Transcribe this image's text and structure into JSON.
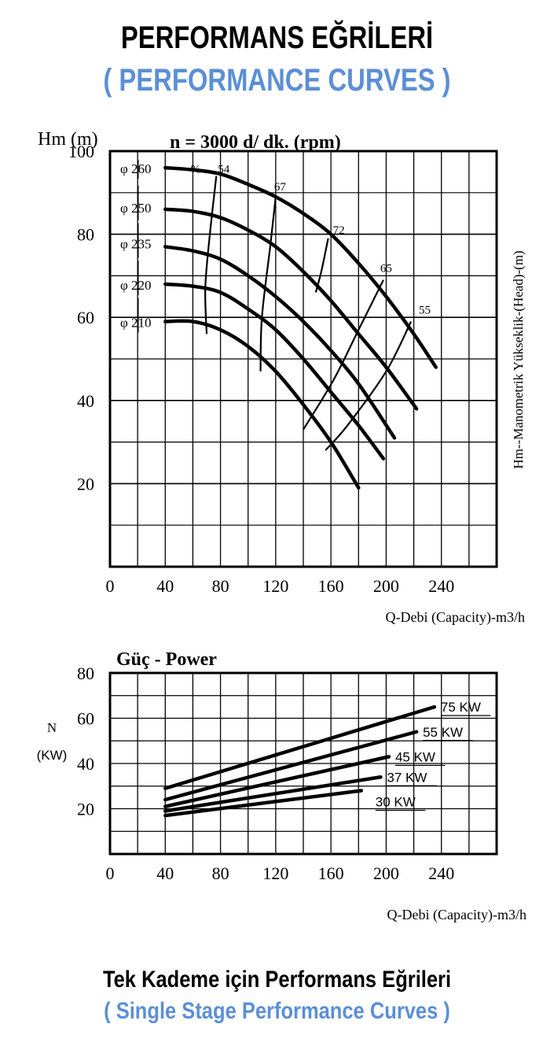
{
  "header": {
    "title": "PERFORMANS EĞRİLERİ",
    "subtitle": "( PERFORMANCE CURVES )"
  },
  "footer": {
    "title": "Tek Kademe için Performans Eğrileri",
    "subtitle": "( Single Stage Performance Curves )"
  },
  "colors": {
    "accent": "#5b8fd6",
    "ink": "#000000"
  },
  "chart_data": [
    {
      "type": "line",
      "title": "n = 3000 d/ dk.  (rpm)",
      "ylabel": "Hm (m)",
      "ylabel_right": "Hm--Manometrik Yükseklik-(Head)-(m)",
      "xlabel": "Q-Debi (Capacity)-m3/h",
      "xlim": [
        0,
        280
      ],
      "ylim": [
        0,
        100
      ],
      "xticks": [
        0,
        40,
        80,
        120,
        160,
        200,
        240
      ],
      "yticks": [
        20,
        40,
        60,
        80,
        100
      ],
      "grid": true,
      "series": [
        {
          "name": "φ 260",
          "x": [
            40,
            60,
            80,
            100,
            120,
            140,
            160,
            180,
            200,
            220,
            236
          ],
          "y": [
            96,
            95.5,
            94.5,
            92,
            89,
            85,
            80,
            73,
            65,
            56,
            48
          ]
        },
        {
          "name": "φ 250",
          "x": [
            40,
            60,
            80,
            100,
            120,
            140,
            160,
            180,
            200,
            222
          ],
          "y": [
            86,
            85.5,
            84,
            81,
            77,
            71,
            64,
            56,
            48,
            38
          ]
        },
        {
          "name": "φ 235",
          "x": [
            40,
            60,
            80,
            100,
            120,
            140,
            160,
            180,
            206
          ],
          "y": [
            77,
            76,
            74,
            70,
            65,
            59,
            52,
            44,
            31
          ]
        },
        {
          "name": "φ 220",
          "x": [
            40,
            60,
            80,
            100,
            120,
            140,
            160,
            180,
            198
          ],
          "y": [
            68,
            67.5,
            66,
            62,
            57,
            50,
            42,
            34,
            26
          ]
        },
        {
          "name": "φ 210",
          "x": [
            40,
            60,
            80,
            100,
            120,
            140,
            160,
            180
          ],
          "y": [
            59,
            59,
            57,
            53,
            47,
            39,
            30,
            19
          ]
        }
      ],
      "efficiency_curves": [
        {
          "label": "54",
          "prefix": "%",
          "x": [
            77,
            72,
            69,
            70
          ],
          "y": [
            94,
            79,
            67,
            56
          ]
        },
        {
          "label": "67",
          "x": [
            120,
            116,
            110,
            109
          ],
          "y": [
            89,
            77,
            60,
            47
          ]
        },
        {
          "label": "72",
          "x": [
            158,
            153,
            149
          ],
          "y": [
            79,
            71,
            66
          ]
        },
        {
          "label": "65",
          "x": [
            198,
            180,
            162,
            140
          ],
          "y": [
            69,
            57,
            45,
            33
          ]
        },
        {
          "label": "55",
          "x": [
            218,
            200,
            172,
            156
          ],
          "y": [
            59,
            47,
            34,
            28
          ]
        }
      ]
    },
    {
      "type": "line",
      "title": "Güç - Power",
      "ylabel": "N",
      "ylabel_unit": "(KW)",
      "xlabel": "Q-Debi (Capacity)-m3/h",
      "xlim": [
        0,
        280
      ],
      "ylim": [
        0,
        80
      ],
      "xticks": [
        0,
        40,
        80,
        120,
        160,
        200,
        240
      ],
      "yticks": [
        20,
        40,
        60,
        80
      ],
      "grid": true,
      "series": [
        {
          "name": "75 KW",
          "x": [
            40,
            235
          ],
          "y": [
            29,
            65
          ]
        },
        {
          "name": "55 KW",
          "x": [
            40,
            222
          ],
          "y": [
            24,
            54
          ]
        },
        {
          "name": "45 KW",
          "x": [
            40,
            202
          ],
          "y": [
            21,
            43
          ]
        },
        {
          "name": "37 KW",
          "x": [
            40,
            196
          ],
          "y": [
            19,
            34
          ]
        },
        {
          "name": "30 KW",
          "x": [
            40,
            182
          ],
          "y": [
            17,
            28
          ]
        }
      ]
    }
  ]
}
